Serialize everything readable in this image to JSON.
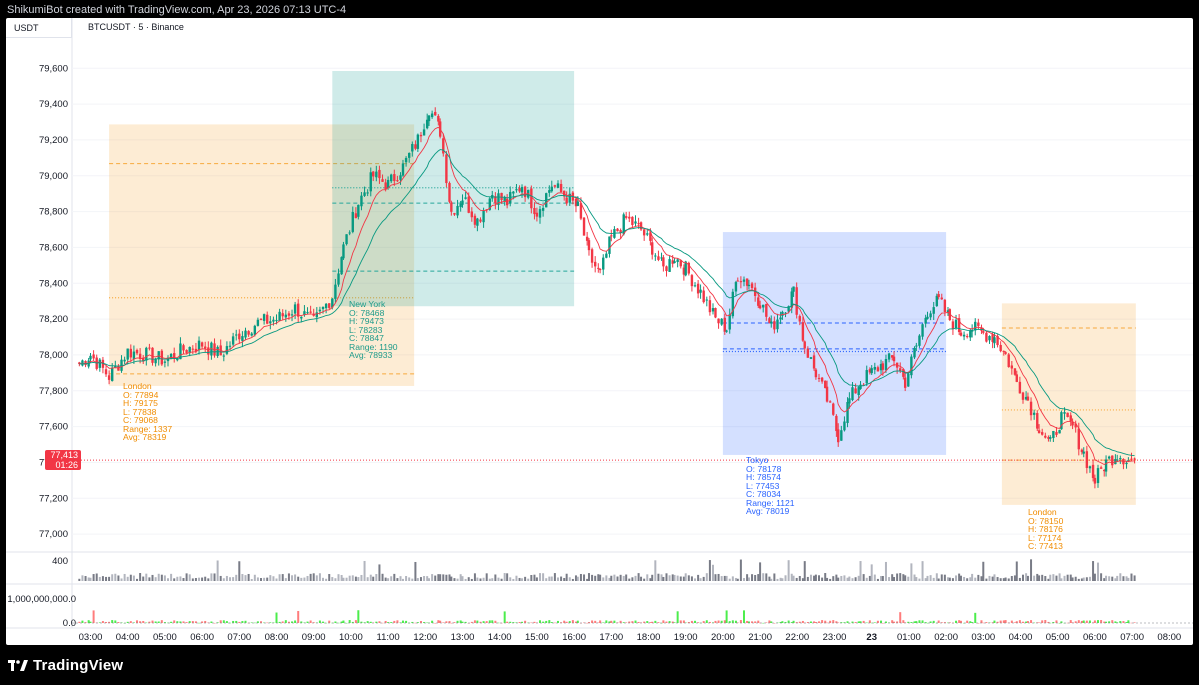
{
  "header": {
    "watermark": "ShikumiBot created with TradingView.com, Apr 23, 2026 07:13 UTC-4",
    "currency": "USDT",
    "symbol": "BTCUSDT · 5 · Binance"
  },
  "footer": {
    "brand": "TradingView"
  },
  "current_price": {
    "value": "77,413",
    "countdown": "01:26"
  },
  "sessions": [
    {
      "name": "London",
      "lines": [
        "London",
        "O: 77894",
        "H: 79175",
        "L: 77838",
        "C: 79068",
        "Range: 1337",
        "Avg: 78319"
      ],
      "color": "#f7a93c",
      "start": 3.5,
      "end": 11.7,
      "high": 79175,
      "low": 77838,
      "open": 77894,
      "close": 79068,
      "avg": 78319
    },
    {
      "name": "New York",
      "lines": [
        "New York",
        "O: 78468",
        "H: 79473",
        "L: 78283",
        "C: 78847",
        "Range: 1190",
        "Avg: 78933"
      ],
      "color": "#26a69a",
      "start": 9.5,
      "end": 16.0,
      "high": 79473,
      "low": 78283,
      "open": 78468,
      "close": 78847,
      "avg": 78933
    },
    {
      "name": "Tokyo",
      "lines": [
        "Tokyo",
        "O: 78178",
        "H: 78574",
        "L: 77453",
        "C: 78034",
        "Range: 1121",
        "Avg: 78019"
      ],
      "color": "#2962ff",
      "start": 20.0,
      "end": 26.0,
      "high": 78574,
      "low": 77453,
      "open": 78178,
      "close": 78034,
      "avg": 78019
    },
    {
      "name": "London",
      "lines": [
        "London",
        "O: 78150",
        "H: 78176",
        "L: 77174",
        "C: 77413"
      ],
      "color": "#f7a93c",
      "start": 27.5,
      "end": 31.1,
      "high": 78176,
      "low": 77174,
      "open": 78150,
      "close": 77413,
      "avg": 77693
    }
  ],
  "chart_data": {
    "type": "line",
    "title": "BTCUSDT · 5 · Binance",
    "xlabel": "",
    "ylabel": "USDT",
    "y_ticks": [
      "79,600",
      "79,400",
      "79,200",
      "79,000",
      "78,800",
      "78,600",
      "78,400",
      "78,200",
      "78,000",
      "77,800",
      "77,600",
      "77,400",
      "77,200",
      "77,000"
    ],
    "y_tick_values": [
      79600,
      79400,
      79200,
      79000,
      78800,
      78600,
      78400,
      78200,
      78000,
      77800,
      77600,
      77400,
      77200,
      77000
    ],
    "ylim": [
      76900,
      79780
    ],
    "x_ticks": [
      "03:00",
      "04:00",
      "05:00",
      "06:00",
      "07:00",
      "08:00",
      "09:00",
      "10:00",
      "11:00",
      "12:00",
      "13:00",
      "14:00",
      "15:00",
      "16:00",
      "17:00",
      "18:00",
      "19:00",
      "20:00",
      "21:00",
      "22:00",
      "23:00",
      "23",
      "01:00",
      "02:00",
      "03:00",
      "04:00",
      "05:00",
      "06:00",
      "07:00",
      "08:00"
    ],
    "x_tick_hours": [
      3,
      4,
      5,
      6,
      7,
      8,
      9,
      10,
      11,
      12,
      13,
      14,
      15,
      16,
      17,
      18,
      19,
      20,
      21,
      22,
      23,
      24,
      25,
      26,
      27,
      28,
      29,
      30,
      31,
      32
    ],
    "price_path": {
      "x_hours": [
        2.7,
        3.0,
        3.5,
        4.0,
        4.5,
        5.0,
        5.5,
        6.0,
        6.5,
        7.0,
        7.5,
        8.0,
        8.5,
        9.0,
        9.5,
        9.8,
        10.2,
        10.6,
        11.0,
        11.4,
        11.8,
        12.1,
        12.4,
        12.7,
        13.0,
        13.4,
        13.8,
        14.2,
        14.6,
        15.0,
        15.4,
        15.8,
        16.1,
        16.4,
        16.7,
        17.0,
        17.4,
        17.8,
        18.1,
        18.4,
        18.7,
        19.0,
        19.4,
        19.8,
        20.1,
        20.4,
        20.7,
        21.0,
        21.3,
        21.6,
        21.9,
        22.2,
        22.5,
        22.8,
        23.1,
        23.4,
        23.7,
        24.0,
        24.3,
        24.6,
        24.9,
        25.2,
        25.5,
        25.8,
        26.1,
        26.4,
        26.7,
        27.0,
        27.3,
        27.6,
        27.9,
        28.2,
        28.5,
        28.8,
        29.1,
        29.4,
        29.7,
        30.0,
        30.3,
        30.6,
        30.9,
        31.1
      ],
      "close": [
        77950,
        78000,
        77880,
        78020,
        78000,
        77970,
        78030,
        78060,
        78000,
        78120,
        78180,
        78200,
        78260,
        78180,
        78330,
        78600,
        78850,
        79000,
        78950,
        79050,
        79200,
        79380,
        79250,
        78800,
        78880,
        78750,
        78900,
        78850,
        78950,
        78800,
        78950,
        78880,
        78820,
        78550,
        78450,
        78650,
        78760,
        78700,
        78600,
        78480,
        78550,
        78480,
        78350,
        78200,
        78150,
        78450,
        78400,
        78300,
        78150,
        78250,
        78350,
        78050,
        77900,
        77750,
        77550,
        77750,
        77850,
        77900,
        77950,
        77980,
        77850,
        78050,
        78250,
        78300,
        78200,
        78130,
        78150,
        78120,
        78100,
        78000,
        77850,
        77750,
        77600,
        77500,
        77650,
        77600,
        77450,
        77300,
        77400,
        77450,
        77413,
        77413
      ]
    },
    "ma_fast_color": "#f23645",
    "ma_slow_color": "#089981",
    "price_line": 77413
  },
  "volume": {
    "tick": "400"
  },
  "indicator2": {
    "tick_top": "1,000,000,000.0",
    "tick_bottom": "0.0"
  },
  "colors": {
    "up": "#089981",
    "down": "#f23645",
    "grid": "#f0f3fa"
  }
}
